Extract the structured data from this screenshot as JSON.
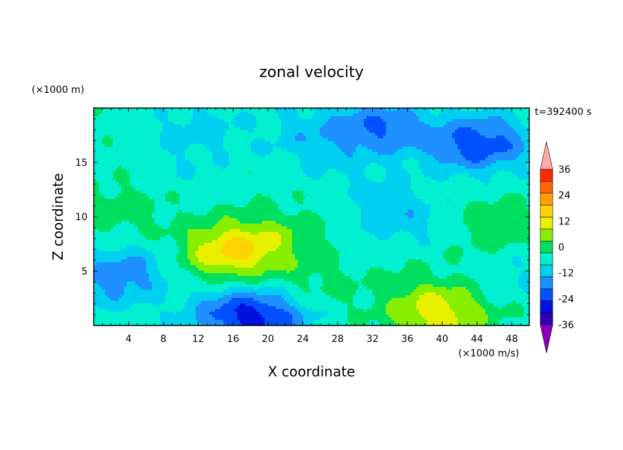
{
  "chart_data": {
    "type": "heatmap",
    "title": "zonal velocity",
    "xlabel": "X coordinate",
    "ylabel": "Z coordinate",
    "y_scale_note": "(×1000 m)",
    "x_scale_note": "(×1000 m/s)",
    "time_label": "t=392400 s",
    "xlim": [
      0,
      50
    ],
    "ylim": [
      0,
      20
    ],
    "x_ticks": [
      4,
      8,
      12,
      16,
      20,
      24,
      28,
      32,
      36,
      40,
      44,
      48
    ],
    "y_ticks": [
      5,
      10,
      15
    ],
    "colorbar": {
      "levels": [
        -42,
        -36,
        -30,
        -24,
        -18,
        -12,
        -6,
        0,
        6,
        12,
        18,
        24,
        30,
        36,
        42
      ],
      "tick_labels": [
        "36",
        "24",
        "12",
        "0",
        "-12",
        "-24",
        "-36"
      ],
      "tick_values": [
        36,
        24,
        12,
        0,
        -12,
        -24,
        -36
      ],
      "colors": [
        "#7a00a8",
        "#2a00b0",
        "#0010e0",
        "#0050ff",
        "#1e90ff",
        "#00d0f0",
        "#00f0d0",
        "#00e060",
        "#88ee00",
        "#e8f000",
        "#ffd400",
        "#ffa000",
        "#ff6600",
        "#ff2a00",
        "#ffaaaa"
      ],
      "over_color": "#ffaaaa",
      "under_color": "#8a00b8"
    },
    "features": [
      {
        "x": 17,
        "y": 7,
        "value": 14
      },
      {
        "x": 14,
        "y": 6.5,
        "value": 8
      },
      {
        "x": 22,
        "y": 8.5,
        "value": 4
      },
      {
        "x": 40,
        "y": 0.8,
        "value": 14
      },
      {
        "x": 38,
        "y": 2.5,
        "value": 5
      },
      {
        "x": 46,
        "y": 9,
        "value": 6
      },
      {
        "x": 3,
        "y": 10.5,
        "value": 5
      },
      {
        "x": 2,
        "y": 4,
        "value": -10
      },
      {
        "x": 5,
        "y": 5.5,
        "value": -7
      },
      {
        "x": 16,
        "y": 1,
        "value": -14
      },
      {
        "x": 20,
        "y": 0.7,
        "value": -16
      },
      {
        "x": 35,
        "y": 10,
        "value": -9
      },
      {
        "x": 25,
        "y": 17.5,
        "value": -8
      },
      {
        "x": 33,
        "y": 18.2,
        "value": -16
      },
      {
        "x": 43,
        "y": 16.5,
        "value": -13
      },
      {
        "x": 46,
        "y": 17,
        "value": -10
      },
      {
        "x": 12,
        "y": 18,
        "value": -7
      },
      {
        "x": 30,
        "y": 13.5,
        "value": -4
      },
      {
        "x": 10,
        "y": 14,
        "value": -3
      },
      {
        "x": 25,
        "y": 3.5,
        "value": 4
      },
      {
        "x": 48,
        "y": 5,
        "value": -5
      }
    ],
    "base_value": -2
  }
}
